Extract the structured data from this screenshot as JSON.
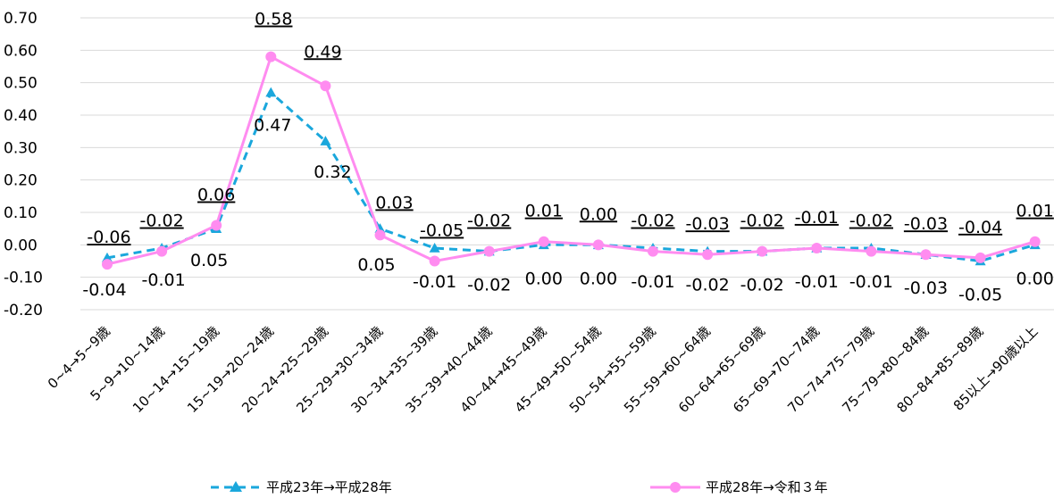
{
  "chart_data": {
    "type": "line",
    "title": "",
    "xlabel": "",
    "ylabel": "",
    "ylim": [
      -0.2,
      0.7
    ],
    "yticks": [
      "0.70",
      "0.60",
      "0.50",
      "0.40",
      "0.30",
      "0.20",
      "0.10",
      "0.00",
      "-0.10",
      "-0.20"
    ],
    "grid": true,
    "legend_position": "bottom",
    "categories": [
      "0~4→5~9歳",
      "5~9→10~14歳",
      "10~14→15~19歳",
      "15~19→20~24歳",
      "20~24→25~29歳",
      "25~29→30~34歳",
      "30~34→35~39歳",
      "35~39→40~44歳",
      "40~44→45~49歳",
      "45~49→50~54歳",
      "50~54→55~59歳",
      "55~59→60~64歳",
      "60~64→65~69歳",
      "65~69→70~74歳",
      "70~74→75~79歳",
      "75~79→80~84歳",
      "80~84→85~89歳",
      "85以上→90歳以上"
    ],
    "series": [
      {
        "name": "平成23年→平成28年",
        "color": "#1aa7dc",
        "line_style": "dashed",
        "marker": "triangle",
        "values": [
          -0.04,
          -0.01,
          0.05,
          0.47,
          0.32,
          0.05,
          -0.01,
          -0.02,
          0.0,
          0.0,
          -0.01,
          -0.02,
          -0.02,
          -0.01,
          -0.01,
          -0.03,
          -0.05,
          0.0
        ],
        "labels": [
          "-0.04",
          "-0.01",
          "0.05",
          "0.47",
          "0.32",
          "0.05",
          "-0.01",
          "-0.02",
          "0.00",
          "0.00",
          "-0.01",
          "-0.02",
          "-0.02",
          "-0.01",
          "-0.01",
          "-0.03",
          "-0.05",
          "0.00"
        ]
      },
      {
        "name": "平成28年→令和３年",
        "color": "#ff8cf0",
        "line_style": "solid",
        "marker": "circle",
        "values": [
          -0.06,
          -0.02,
          0.06,
          0.58,
          0.49,
          0.03,
          -0.05,
          -0.02,
          0.01,
          0.0,
          -0.02,
          -0.03,
          -0.02,
          -0.01,
          -0.02,
          -0.03,
          -0.04,
          0.01
        ],
        "labels": [
          "-0.06",
          "-0.02",
          "0.06",
          "0.58",
          "0.49",
          "0.03",
          "-0.05",
          "-0.02",
          "0.01",
          "0.00",
          "-0.02",
          "-0.03",
          "-0.02",
          "-0.01",
          "-0.02",
          "-0.03",
          "-0.04",
          "0.01"
        ]
      }
    ]
  }
}
